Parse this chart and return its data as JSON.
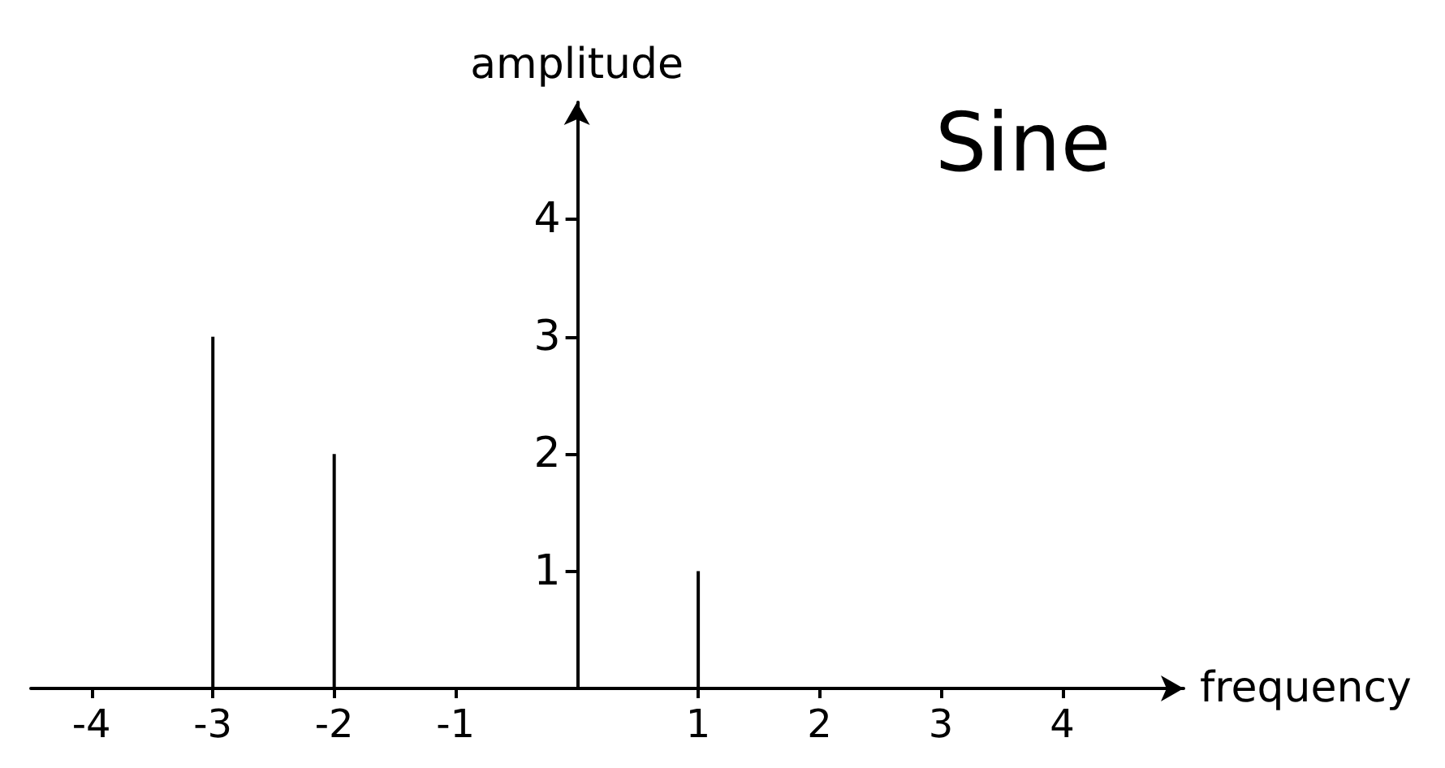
{
  "chart_data": {
    "type": "bar",
    "title": "Sine",
    "xlabel": "frequency",
    "ylabel": "amplitude",
    "x": [
      -3,
      -2,
      1
    ],
    "values": [
      3,
      2,
      1
    ],
    "color": "#000000",
    "xlim": [
      -4.5,
      5
    ],
    "ylim": [
      0,
      5
    ],
    "xticks": [
      -4,
      -3,
      -2,
      -1,
      1,
      2,
      3,
      4
    ],
    "yticks": [
      1,
      2,
      3,
      4
    ],
    "grid": false
  }
}
